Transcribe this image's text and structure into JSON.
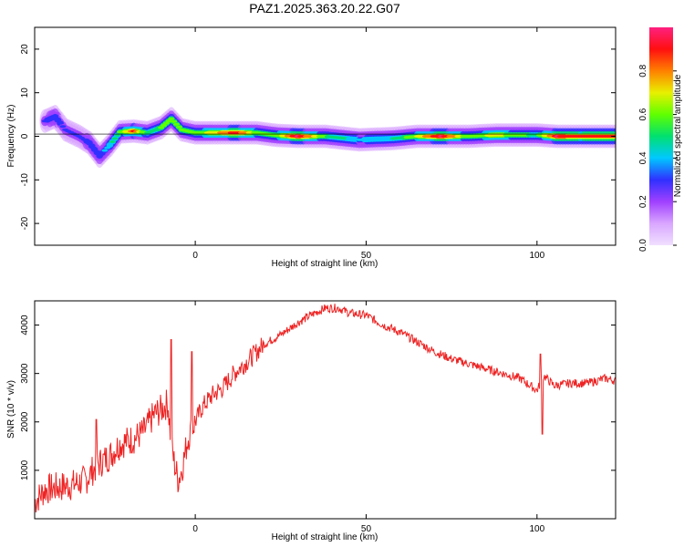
{
  "title": "PAZ1.2025.363.20.22.G07",
  "chart_data": [
    {
      "type": "heatmap",
      "panel": "spectrogram",
      "xlabel": "Height of straight line (km)",
      "ylabel": "Frequency (Hz)",
      "xlim": [
        -47,
        123
      ],
      "ylim": [
        -25,
        25
      ],
      "xticks": [
        0,
        50,
        100
      ],
      "yticks": [
        -20,
        -10,
        0,
        10,
        20
      ],
      "colorbar": {
        "label": "Normalized spectral amplitude",
        "range": [
          0,
          1
        ],
        "ticks": [
          "0.0",
          "0.2",
          "0.4",
          "0.6",
          "0.8"
        ],
        "colors": [
          "#f0e0ff",
          "#d9a6ff",
          "#a040ff",
          "#3030ff",
          "#00c8ff",
          "#00e070",
          "#60ff00",
          "#e8f000",
          "#ff8000",
          "#ff1010",
          "#ff2080"
        ]
      },
      "ridge": [
        {
          "x": -44,
          "f": 3.5,
          "a": 0.28
        },
        {
          "x": -41,
          "f": 4.5,
          "a": 0.3
        },
        {
          "x": -38,
          "f": 1.5,
          "a": 0.27
        },
        {
          "x": -34,
          "f": 0.0,
          "a": 0.25
        },
        {
          "x": -31,
          "f": -1.5,
          "a": 0.3
        },
        {
          "x": -28,
          "f": -4.5,
          "a": 0.32
        },
        {
          "x": -25,
          "f": -2.0,
          "a": 0.42
        },
        {
          "x": -22,
          "f": 1.0,
          "a": 0.55
        },
        {
          "x": -18,
          "f": 1.2,
          "a": 0.85
        },
        {
          "x": -14,
          "f": 0.8,
          "a": 0.5
        },
        {
          "x": -10,
          "f": 2.0,
          "a": 0.55
        },
        {
          "x": -7,
          "f": 4.0,
          "a": 0.55
        },
        {
          "x": -4,
          "f": 1.5,
          "a": 0.6
        },
        {
          "x": 0,
          "f": 0.8,
          "a": 0.55
        },
        {
          "x": 5,
          "f": 0.8,
          "a": 0.7
        },
        {
          "x": 12,
          "f": 0.8,
          "a": 0.9
        },
        {
          "x": 18,
          "f": 0.8,
          "a": 0.6
        },
        {
          "x": 24,
          "f": 0.2,
          "a": 0.6
        },
        {
          "x": 30,
          "f": 0.0,
          "a": 0.95
        },
        {
          "x": 38,
          "f": 0.0,
          "a": 0.55
        },
        {
          "x": 48,
          "f": -0.8,
          "a": 0.4
        },
        {
          "x": 58,
          "f": -0.5,
          "a": 0.45
        },
        {
          "x": 65,
          "f": 0.0,
          "a": 0.65
        },
        {
          "x": 72,
          "f": 0.0,
          "a": 0.95
        },
        {
          "x": 80,
          "f": 0.0,
          "a": 0.55
        },
        {
          "x": 88,
          "f": 0.3,
          "a": 0.7
        },
        {
          "x": 94,
          "f": 0.3,
          "a": 0.6
        },
        {
          "x": 100,
          "f": 0.3,
          "a": 0.5
        },
        {
          "x": 106,
          "f": 0.0,
          "a": 0.95
        },
        {
          "x": 113,
          "f": 0.0,
          "a": 0.85
        },
        {
          "x": 123,
          "f": 0.0,
          "a": 0.9
        }
      ]
    },
    {
      "type": "line",
      "panel": "snr",
      "xlabel": "Height of straight line (km)",
      "ylabel": "SNR (10 * v/v)",
      "xlim": [
        -47,
        123
      ],
      "ylim": [
        0,
        4500
      ],
      "xticks": [
        0,
        50,
        100
      ],
      "yticks": [
        1000,
        2000,
        3000,
        4000
      ],
      "color": "#ee2222",
      "series": [
        {
          "x": [
            -47,
            -44,
            -40,
            -36,
            -32,
            -30,
            -28,
            -25,
            -22,
            -18,
            -15,
            -12,
            -10,
            -8,
            -7,
            -6,
            -5,
            -4,
            -2,
            0,
            2,
            5,
            8,
            12,
            16,
            20,
            25,
            30,
            35,
            38,
            42,
            45,
            50,
            55,
            60,
            65,
            70,
            75,
            80,
            85,
            90,
            95,
            98,
            100,
            102,
            105,
            110,
            115,
            120,
            123
          ],
          "y": [
            350,
            600,
            650,
            700,
            800,
            1000,
            1150,
            1300,
            1550,
            1650,
            1800,
            2150,
            2250,
            2400,
            1500,
            1100,
            800,
            1000,
            1700,
            2000,
            2300,
            2550,
            2700,
            3050,
            3300,
            3600,
            3800,
            4050,
            4250,
            4350,
            4350,
            4250,
            4200,
            4000,
            3850,
            3650,
            3450,
            3300,
            3200,
            3100,
            3000,
            2900,
            2750,
            2650,
            2950,
            2750,
            2800,
            2800,
            2900,
            2850
          ]
        }
      ],
      "spikes": [
        {
          "x": -29,
          "y": 2050
        },
        {
          "x": -7,
          "y": 3700
        },
        {
          "x": -1,
          "y": 3450
        },
        {
          "x": 101,
          "y": 3400
        },
        {
          "x": 101.5,
          "y": 1750
        }
      ]
    }
  ]
}
